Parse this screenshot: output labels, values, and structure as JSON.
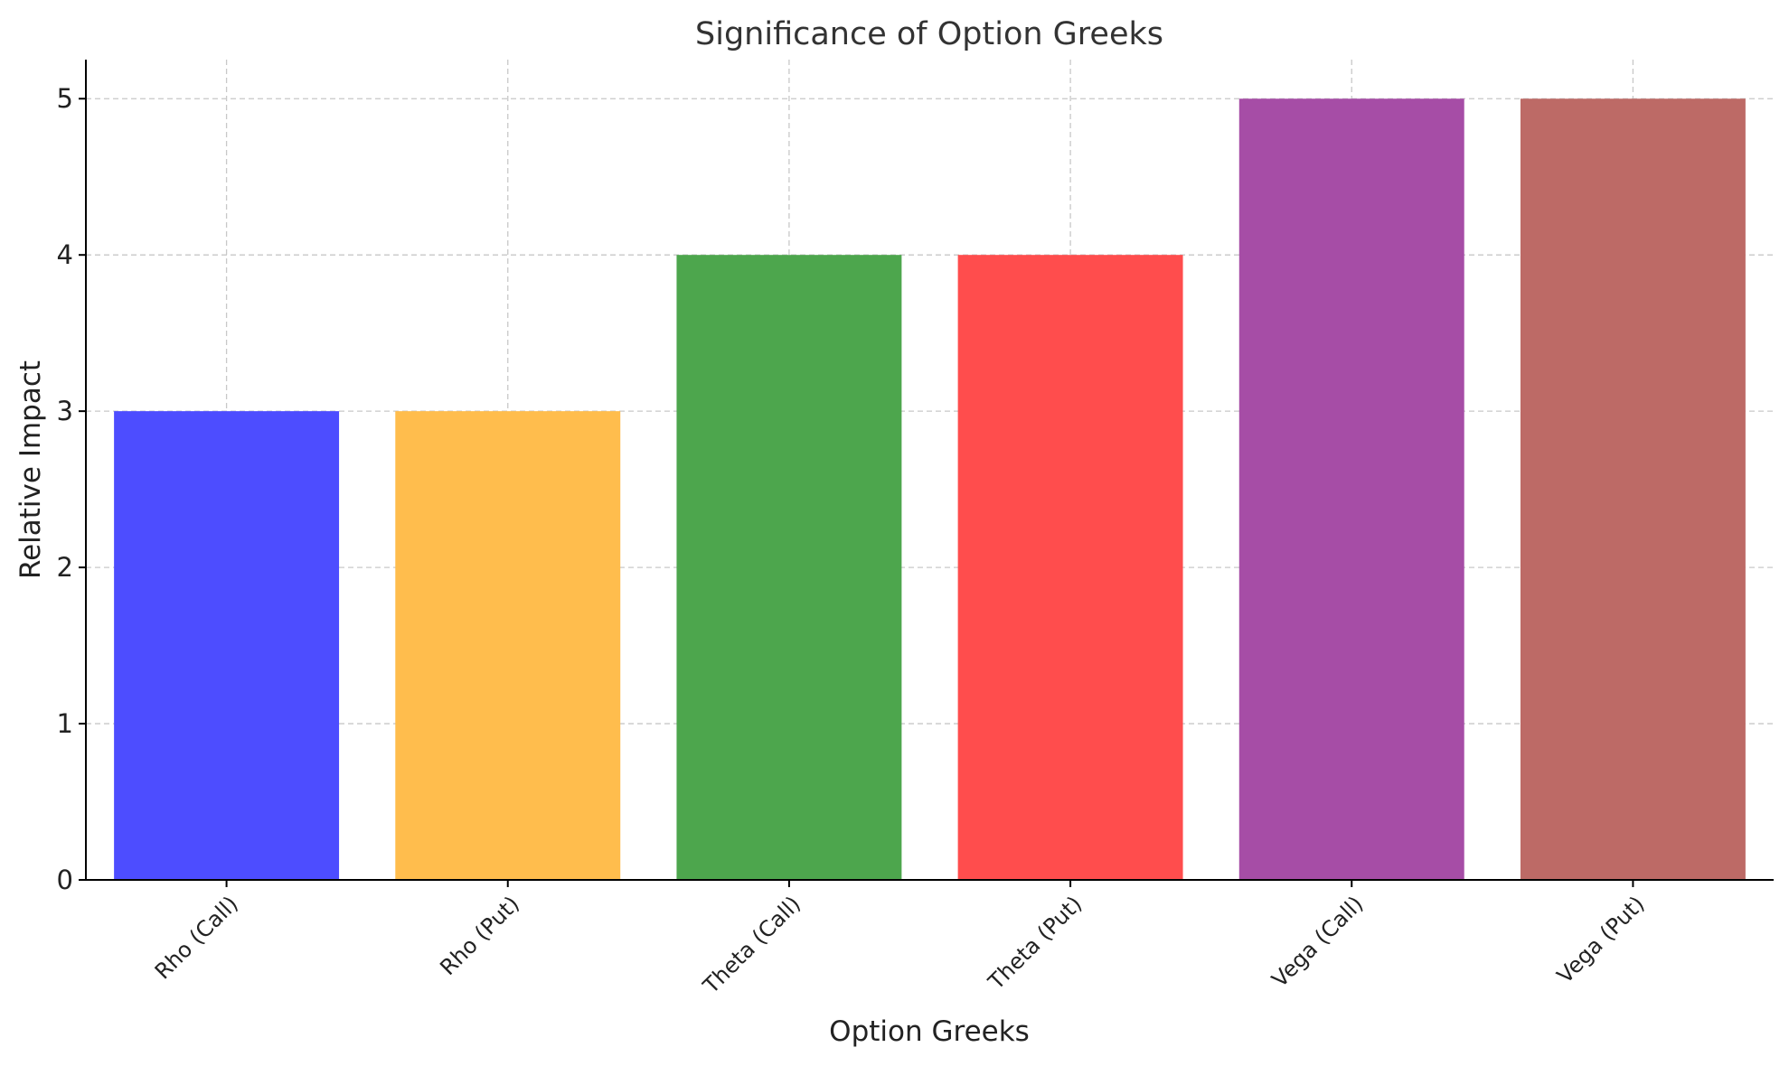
{
  "chart_data": {
    "type": "bar",
    "title": "Significance of Option Greeks",
    "xlabel": "Option Greeks",
    "ylabel": "Relative Impact",
    "categories": [
      "Rho (Call)",
      "Rho (Put)",
      "Theta (Call)",
      "Theta (Put)",
      "Vega (Call)",
      "Vega (Put)"
    ],
    "values": [
      3,
      3,
      4,
      4,
      5,
      5
    ],
    "colors": [
      "#4d4dff",
      "#ffbd4d",
      "#4da64d",
      "#ff4d4d",
      "#a64da6",
      "#bd6a66"
    ],
    "ylim": [
      0,
      5.25
    ],
    "yticks": [
      0,
      1,
      2,
      3,
      4,
      5
    ],
    "grid": true
  }
}
